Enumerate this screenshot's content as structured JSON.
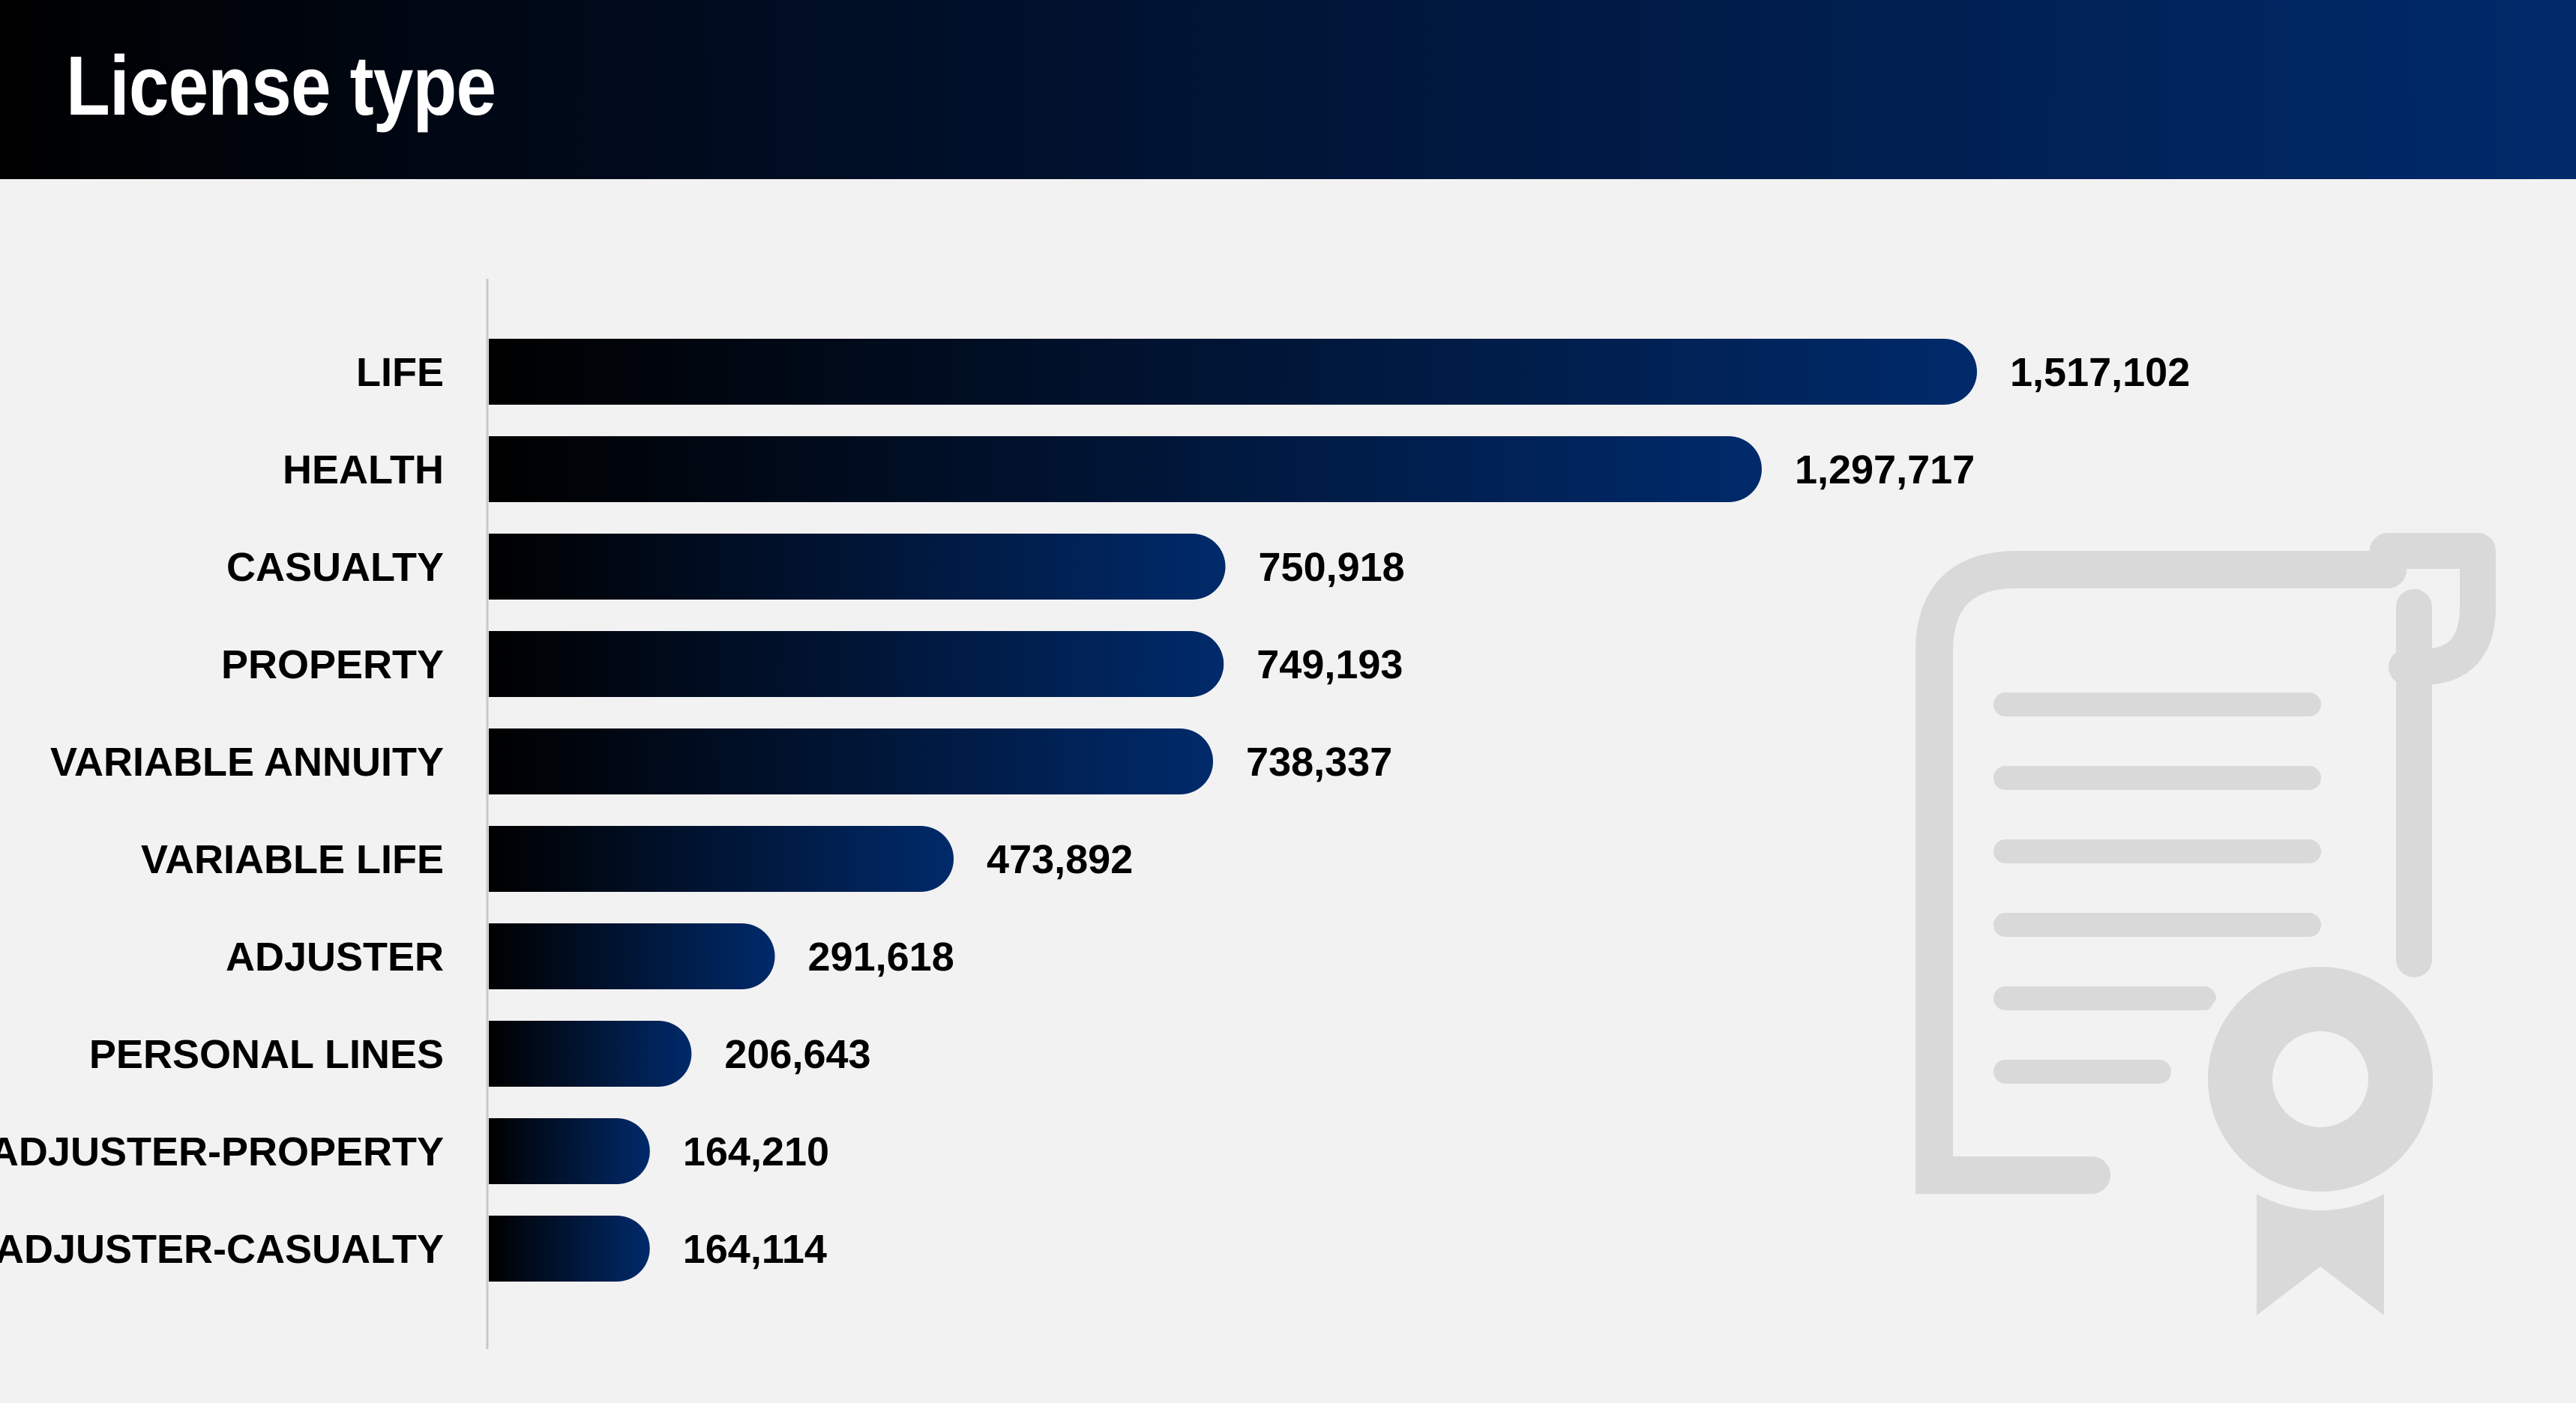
{
  "header": {
    "title": "License type"
  },
  "colors": {
    "header_gradient": [
      "#000000",
      "#002a6b"
    ],
    "bar_gradient": [
      "#000000",
      "#002a6b"
    ],
    "background": "#f2f2f2",
    "icon": "#d9d9d9"
  },
  "decoration": {
    "icon": "certificate-icon"
  },
  "chart_data": {
    "type": "bar",
    "orientation": "horizontal",
    "title": "License type",
    "categories": [
      "LIFE",
      "HEALTH",
      "CASUALTY",
      "PROPERTY",
      "VARIABLE ANNUITY",
      "VARIABLE LIFE",
      "ADJUSTER",
      "PERSONAL LINES",
      "ADJUSTER-PROPERTY",
      "ADJUSTER-CASUALTY"
    ],
    "values": [
      1517102,
      1297717,
      750918,
      749193,
      738337,
      473892,
      291618,
      206643,
      164210,
      164114
    ],
    "value_labels": [
      "1,517,102",
      "1,297,717",
      "750,918",
      "749,193",
      "738,337",
      "473,892",
      "291,618",
      "206,643",
      "164,210",
      "164,114"
    ],
    "xlabel": "",
    "ylabel": "",
    "grid": false,
    "legend": "none"
  }
}
